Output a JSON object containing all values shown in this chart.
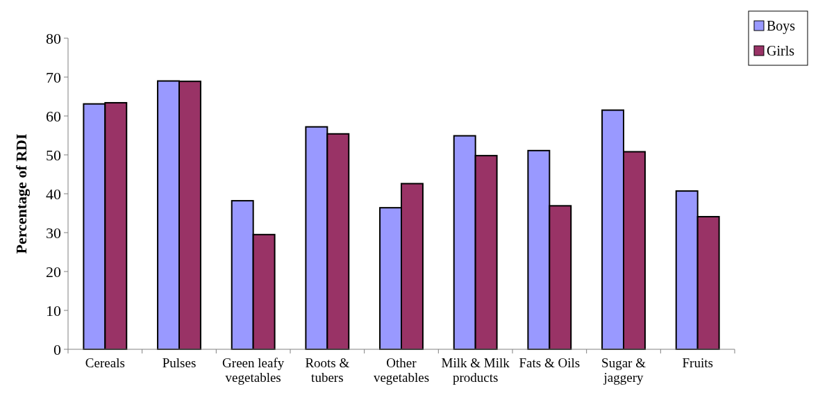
{
  "chart_data": {
    "type": "bar",
    "ylabel": "Percentage of RDI",
    "categories": [
      "Cereals",
      "Pulses",
      "Green leafy vegetables",
      "Roots & tubers",
      "Other vegetables",
      "Milk & Milk products",
      "Fats & Oils",
      "Sugar & jaggery",
      "Fruits"
    ],
    "series": [
      {
        "name": "Boys",
        "color": "#9999ff",
        "values": [
          63.1,
          69.0,
          38.2,
          57.2,
          36.4,
          54.9,
          51.1,
          61.5,
          40.7
        ]
      },
      {
        "name": "Girls",
        "color": "#993366",
        "values": [
          63.4,
          68.9,
          29.5,
          55.4,
          42.6,
          49.8,
          36.9,
          50.8,
          34.1
        ]
      }
    ],
    "ylim": [
      0,
      80
    ],
    "yticks": [
      0,
      10,
      20,
      30,
      40,
      50,
      60,
      70,
      80
    ],
    "grid": false,
    "legend": "top right"
  }
}
